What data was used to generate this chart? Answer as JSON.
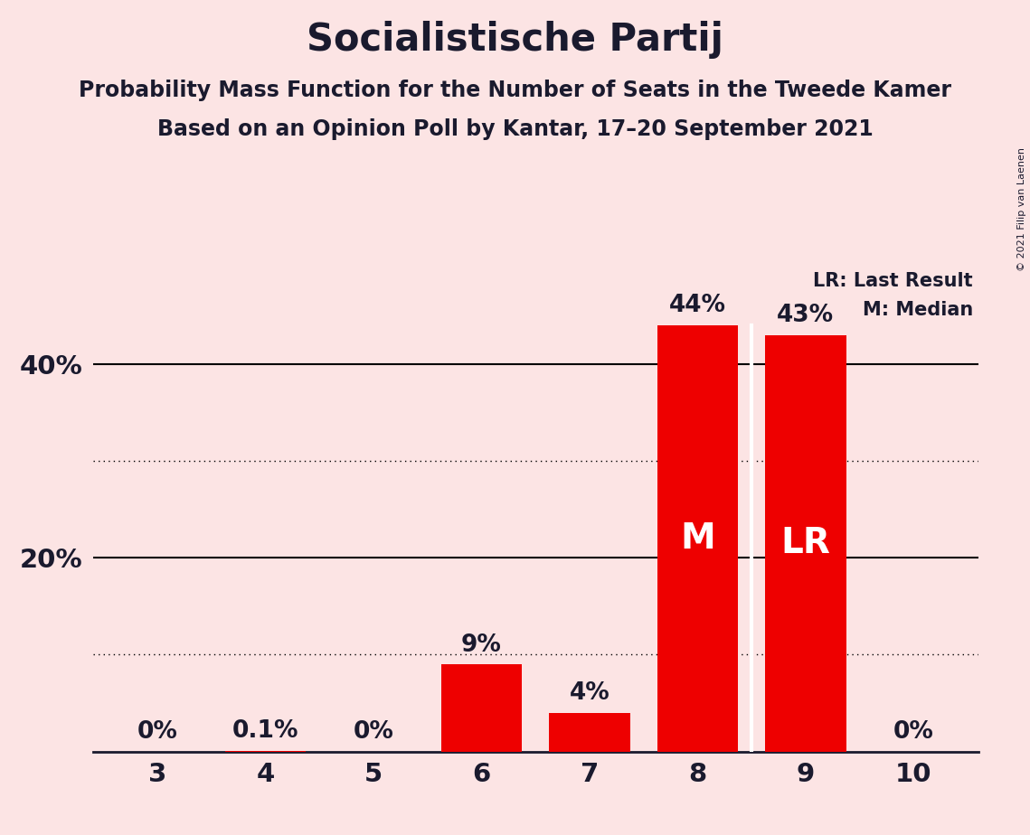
{
  "title": "Socialistische Partij",
  "subtitle1": "Probability Mass Function for the Number of Seats in the Tweede Kamer",
  "subtitle2": "Based on an Opinion Poll by Kantar, 17–20 September 2021",
  "copyright": "© 2021 Filip van Laenen",
  "categories": [
    3,
    4,
    5,
    6,
    7,
    8,
    9,
    10
  ],
  "values": [
    0.0,
    0.1,
    0.0,
    9.0,
    4.0,
    44.0,
    43.0,
    0.0
  ],
  "bar_labels": [
    "0%",
    "0.1%",
    "0%",
    "9%",
    "4%",
    "44%",
    "43%",
    "0%"
  ],
  "bar_color": "#ee0000",
  "background_color": "#fce4e4",
  "median_bar": 8,
  "last_result_bar": 9,
  "median_label": "M",
  "last_result_label": "LR",
  "legend_lr": "LR: Last Result",
  "legend_m": "M: Median",
  "ylim": [
    0,
    50
  ],
  "solid_gridlines": [
    20,
    40
  ],
  "dotted_gridlines": [
    10,
    30
  ],
  "title_fontsize": 30,
  "subtitle_fontsize": 17,
  "bar_label_fontsize": 19,
  "axis_fontsize": 21,
  "inside_label_fontsize": 28,
  "legend_fontsize": 15,
  "bar_width": 0.75
}
